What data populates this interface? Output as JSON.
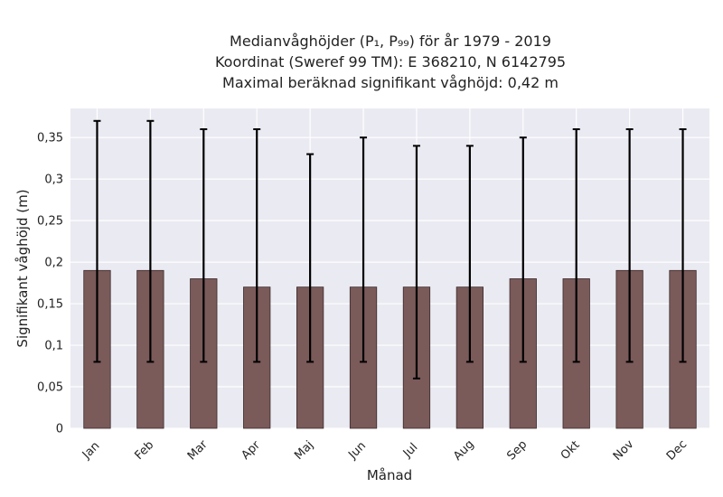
{
  "chart_data": {
    "type": "bar",
    "title_lines": [
      "Medianvåghöjder (P₁, P₉₉) för år 1979 - 2019",
      "Koordinat (Sweref 99 TM): E 368210, N 6142795",
      "Maximal beräknad signifikant våghöjd: 0,42 m"
    ],
    "xlabel": "Månad",
    "ylabel": "Signifikant våghöjd (m)",
    "categories": [
      "Jan",
      "Feb",
      "Mar",
      "Apr",
      "Maj",
      "Jun",
      "Jul",
      "Aug",
      "Sep",
      "Okt",
      "Nov",
      "Dec"
    ],
    "values": [
      0.19,
      0.19,
      0.18,
      0.17,
      0.17,
      0.17,
      0.17,
      0.17,
      0.18,
      0.18,
      0.19,
      0.19
    ],
    "p1": [
      0.08,
      0.08,
      0.08,
      0.08,
      0.08,
      0.08,
      0.06,
      0.08,
      0.08,
      0.08,
      0.08,
      0.08
    ],
    "p99": [
      0.37,
      0.37,
      0.36,
      0.36,
      0.33,
      0.35,
      0.34,
      0.34,
      0.35,
      0.36,
      0.36,
      0.36
    ],
    "ylim": [
      0,
      0.385
    ],
    "yticks": [
      0,
      0.05,
      0.1,
      0.15,
      0.2,
      0.25,
      0.3,
      0.35
    ],
    "ytick_labels": [
      "0",
      "0,05",
      "0,1",
      "0,15",
      "0,2",
      "0,25",
      "0,3",
      "0,35"
    ],
    "grid": true,
    "colors": {
      "bar": "#7b5a5a",
      "bar_edge": "#3a2a2a",
      "error": "#000000",
      "plot_bg": "#eaeaf2",
      "grid": "#ffffff"
    }
  }
}
